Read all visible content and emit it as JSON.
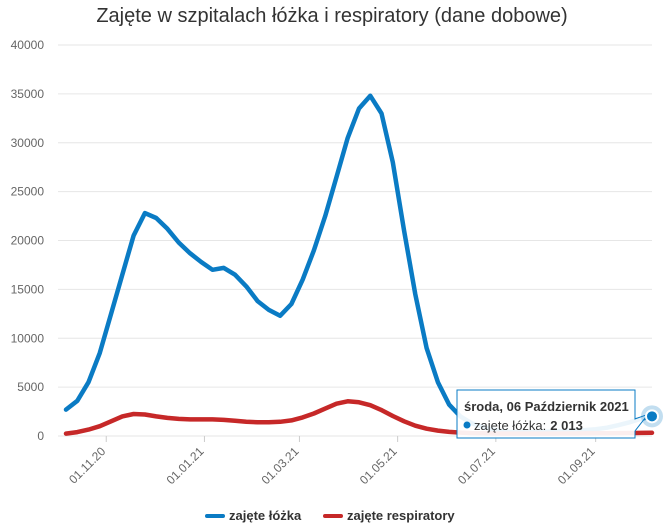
{
  "chart_data": {
    "type": "line",
    "title": "Zajęte w szpitalach łóżka i respiratory (dane dobowe)",
    "xlabel": "",
    "ylabel": "",
    "ylim": [
      0,
      40000
    ],
    "yticks": [
      "0",
      "5000",
      "10000",
      "15000",
      "20000",
      "25000",
      "30000",
      "35000",
      "40000"
    ],
    "xtick_labels": [
      "01.11.20",
      "01.01.21",
      "01.03.21",
      "01.05.21",
      "01.07.21",
      "01.09.21"
    ],
    "grid": true,
    "legend_position": "bottom",
    "x": [
      "2020-10-07",
      "2020-10-14",
      "2020-10-21",
      "2020-10-28",
      "2020-11-04",
      "2020-11-11",
      "2020-11-18",
      "2020-11-25",
      "2020-12-02",
      "2020-12-09",
      "2020-12-16",
      "2020-12-23",
      "2020-12-30",
      "2021-01-06",
      "2021-01-13",
      "2021-01-20",
      "2021-01-27",
      "2021-02-03",
      "2021-02-10",
      "2021-02-17",
      "2021-02-24",
      "2021-03-03",
      "2021-03-10",
      "2021-03-17",
      "2021-03-24",
      "2021-03-31",
      "2021-04-07",
      "2021-04-14",
      "2021-04-21",
      "2021-04-28",
      "2021-05-05",
      "2021-05-12",
      "2021-05-19",
      "2021-05-26",
      "2021-06-02",
      "2021-06-09",
      "2021-06-16",
      "2021-06-23",
      "2021-06-30",
      "2021-07-07",
      "2021-07-14",
      "2021-07-21",
      "2021-07-28",
      "2021-08-04",
      "2021-08-11",
      "2021-08-18",
      "2021-08-25",
      "2021-09-01",
      "2021-09-08",
      "2021-09-15",
      "2021-09-22",
      "2021-09-29",
      "2021-10-06"
    ],
    "series": [
      {
        "name": "zajęte łóżka",
        "color": "#0a7bc4",
        "values": [
          2700,
          3600,
          5500,
          8500,
          12500,
          16500,
          20500,
          22800,
          22300,
          21200,
          19800,
          18700,
          17800,
          17000,
          17200,
          16500,
          15300,
          13800,
          12900,
          12300,
          13500,
          16000,
          19000,
          22500,
          26500,
          30500,
          33500,
          34800,
          33000,
          28000,
          21000,
          14500,
          9000,
          5500,
          3200,
          2000,
          1300,
          900,
          600,
          450,
          400,
          400,
          420,
          450,
          500,
          550,
          600,
          700,
          850,
          1100,
          1400,
          1750,
          2013
        ]
      },
      {
        "name": "zajęte respiratory",
        "color": "#c62828",
        "values": [
          250,
          400,
          650,
          1000,
          1500,
          2000,
          2250,
          2200,
          2000,
          1850,
          1750,
          1700,
          1700,
          1700,
          1650,
          1550,
          1450,
          1400,
          1400,
          1450,
          1600,
          1900,
          2300,
          2800,
          3300,
          3550,
          3450,
          3150,
          2650,
          2050,
          1500,
          1050,
          750,
          550,
          420,
          350,
          300,
          280,
          260,
          250,
          250,
          250,
          250,
          250,
          255,
          260,
          270,
          280,
          290,
          300,
          310,
          320,
          330
        ]
      }
    ],
    "tooltip": {
      "title": "środa, 06 Październik 2021",
      "series_label": "zajęte łóżka:",
      "value": "2 013"
    }
  }
}
